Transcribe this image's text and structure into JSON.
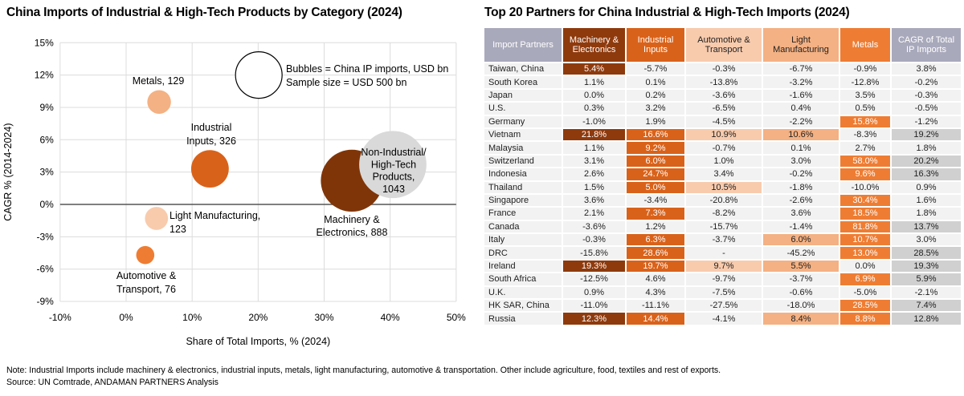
{
  "palette": {
    "dark": "#8E3A0D",
    "orange": "#D9621A",
    "metals": "#EE7D33",
    "peach_light": "#F8CBAD",
    "peach_med": "#F4B183",
    "gray": "#D0D0D0",
    "header_gray": "#A9A9BC",
    "row_bg": "#F2F2F2",
    "gridline": "#DCDCDC",
    "zero_line": "#555555"
  },
  "chart_data": [
    {
      "type": "scatter",
      "title": "China Imports of Industrial & High-Tech Products by Category (2024)",
      "xlabel": "Share of Total Imports, % (2024)",
      "ylabel": "CAGR % (2014-2024)",
      "xlim": [
        -10,
        50
      ],
      "ylim": [
        -9,
        15
      ],
      "x_tick_step": 10,
      "y_tick_step": 3,
      "x_ticks": [
        "-10%",
        "0%",
        "10%",
        "20%",
        "30%",
        "40%",
        "50%"
      ],
      "y_ticks": [
        "15%",
        "12%",
        "9%",
        "6%",
        "3%",
        "0%",
        "-3%",
        "-6%",
        "-9%"
      ],
      "grid": true,
      "bubble_legend": {
        "lines": [
          "Bubbles = China IP imports, USD bn",
          "Sample size = USD 500 bn"
        ],
        "sample_bn": 500,
        "x": 20.1,
        "y": 12.0
      },
      "points": [
        {
          "name": "Metals",
          "label_lines": [
            "Metals, 129"
          ],
          "x": 5.0,
          "y": 9.5,
          "value_bn": 129,
          "color": "#F4B183"
        },
        {
          "name": "Industrial Inputs",
          "label_lines": [
            "Industrial",
            "Inputs, 326"
          ],
          "x": 12.7,
          "y": 3.3,
          "value_bn": 326,
          "color": "#D9621A"
        },
        {
          "name": "Light Manufacturing",
          "label_lines": [
            "Light Manufacturing,",
            "123"
          ],
          "x": 4.6,
          "y": -1.3,
          "value_bn": 123,
          "color": "#F8CBAD"
        },
        {
          "name": "Automotive & Transport",
          "label_lines": [
            "Automotive &",
            "Transport, 76"
          ],
          "x": 2.9,
          "y": -4.7,
          "value_bn": 76,
          "color": "#EE7D33"
        },
        {
          "name": "Machinery & Electronics",
          "label_lines": [
            "Machinery &",
            "Electronics, 888"
          ],
          "x": 34.2,
          "y": 2.2,
          "value_bn": 888,
          "color": "#803508"
        },
        {
          "name": "Non-Industrial/High-Tech Products",
          "label_lines": [
            "Non-Industrial/",
            "High-Tech",
            "Products,",
            "1043"
          ],
          "x": 40.4,
          "y": 3.7,
          "value_bn": 1043,
          "color": "#D9D9D9"
        }
      ]
    },
    {
      "type": "table",
      "title": "Top 20 Partners for China Industrial & High-Tech Imports (2024)",
      "columns": [
        {
          "label": "Import Partners",
          "style": "header_gray"
        },
        {
          "label": "Machinery & Electronics",
          "style": "dark"
        },
        {
          "label": "Industrial Inputs",
          "style": "orange"
        },
        {
          "label": "Automotive & Transport",
          "style": "peach_light"
        },
        {
          "label": "Light Manufacturing",
          "style": "peach_med"
        },
        {
          "label": "Metals",
          "style": "metals"
        },
        {
          "label": "CAGR of Total IP Imports",
          "style": "header_gray"
        }
      ],
      "rows": [
        {
          "partner": "Taiwan, China",
          "cells": [
            [
              "5.4%",
              "dark"
            ],
            [
              "-5.7%",
              ""
            ],
            [
              "-0.3%",
              ""
            ],
            [
              "-6.7%",
              ""
            ],
            [
              "-0.9%",
              ""
            ],
            [
              "3.8%",
              ""
            ]
          ]
        },
        {
          "partner": "South Korea",
          "cells": [
            [
              "1.1%",
              ""
            ],
            [
              "0.1%",
              ""
            ],
            [
              "-13.8%",
              ""
            ],
            [
              "-3.2%",
              ""
            ],
            [
              "-12.8%",
              ""
            ],
            [
              "-0.2%",
              ""
            ]
          ]
        },
        {
          "partner": "Japan",
          "cells": [
            [
              "0.0%",
              ""
            ],
            [
              "0.2%",
              ""
            ],
            [
              "-3.6%",
              ""
            ],
            [
              "-1.6%",
              ""
            ],
            [
              "3.5%",
              ""
            ],
            [
              "-0.3%",
              ""
            ]
          ]
        },
        {
          "partner": "U.S.",
          "cells": [
            [
              "0.3%",
              ""
            ],
            [
              "3.2%",
              ""
            ],
            [
              "-6.5%",
              ""
            ],
            [
              "0.4%",
              ""
            ],
            [
              "0.5%",
              ""
            ],
            [
              "-0.5%",
              ""
            ]
          ]
        },
        {
          "partner": "Germany",
          "cells": [
            [
              "-1.0%",
              ""
            ],
            [
              "1.9%",
              ""
            ],
            [
              "-4.5%",
              ""
            ],
            [
              "-2.2%",
              ""
            ],
            [
              "15.8%",
              "metals"
            ],
            [
              "-1.2%",
              ""
            ]
          ]
        },
        {
          "partner": "Vietnam",
          "cells": [
            [
              "21.8%",
              "dark"
            ],
            [
              "16.6%",
              "orange"
            ],
            [
              "10.9%",
              "peach_light"
            ],
            [
              "10.6%",
              "peach_med"
            ],
            [
              "-8.3%",
              ""
            ],
            [
              "19.2%",
              "gray"
            ]
          ]
        },
        {
          "partner": "Malaysia",
          "cells": [
            [
              "1.1%",
              ""
            ],
            [
              "9.2%",
              "orange"
            ],
            [
              "-0.7%",
              ""
            ],
            [
              "0.1%",
              ""
            ],
            [
              "2.7%",
              ""
            ],
            [
              "1.8%",
              ""
            ]
          ]
        },
        {
          "partner": "Switzerland",
          "cells": [
            [
              "3.1%",
              ""
            ],
            [
              "6.0%",
              "orange"
            ],
            [
              "1.0%",
              ""
            ],
            [
              "3.0%",
              ""
            ],
            [
              "58.0%",
              "metals"
            ],
            [
              "20.2%",
              "gray"
            ]
          ]
        },
        {
          "partner": "Indonesia",
          "cells": [
            [
              "2.6%",
              ""
            ],
            [
              "24.7%",
              "orange"
            ],
            [
              "3.4%",
              ""
            ],
            [
              "-0.2%",
              ""
            ],
            [
              "9.6%",
              "metals"
            ],
            [
              "16.3%",
              "gray"
            ]
          ]
        },
        {
          "partner": "Thailand",
          "cells": [
            [
              "1.5%",
              ""
            ],
            [
              "5.0%",
              "orange"
            ],
            [
              "10.5%",
              "peach_light"
            ],
            [
              "-1.8%",
              ""
            ],
            [
              "-10.0%",
              ""
            ],
            [
              "0.9%",
              ""
            ]
          ]
        },
        {
          "partner": "Singapore",
          "cells": [
            [
              "3.6%",
              ""
            ],
            [
              "-3.4%",
              ""
            ],
            [
              "-20.8%",
              ""
            ],
            [
              "-2.6%",
              ""
            ],
            [
              "30.4%",
              "metals"
            ],
            [
              "1.6%",
              ""
            ]
          ]
        },
        {
          "partner": "France",
          "cells": [
            [
              "2.1%",
              ""
            ],
            [
              "7.3%",
              "orange"
            ],
            [
              "-8.2%",
              ""
            ],
            [
              "3.6%",
              ""
            ],
            [
              "18.5%",
              "metals"
            ],
            [
              "1.8%",
              ""
            ]
          ]
        },
        {
          "partner": "Canada",
          "cells": [
            [
              "-3.6%",
              ""
            ],
            [
              "1.2%",
              ""
            ],
            [
              "-15.7%",
              ""
            ],
            [
              "-1.4%",
              ""
            ],
            [
              "81.8%",
              "metals"
            ],
            [
              "13.7%",
              "gray"
            ]
          ]
        },
        {
          "partner": "Italy",
          "cells": [
            [
              "-0.3%",
              ""
            ],
            [
              "6.3%",
              "orange"
            ],
            [
              "-3.7%",
              ""
            ],
            [
              "6.0%",
              "peach_med"
            ],
            [
              "10.7%",
              "metals"
            ],
            [
              "3.0%",
              ""
            ]
          ]
        },
        {
          "partner": "DRC",
          "cells": [
            [
              "-15.8%",
              ""
            ],
            [
              "28.6%",
              "orange"
            ],
            [
              "-",
              ""
            ],
            [
              "-45.2%",
              ""
            ],
            [
              "13.0%",
              "metals"
            ],
            [
              "28.5%",
              "gray"
            ]
          ]
        },
        {
          "partner": "Ireland",
          "cells": [
            [
              "19.3%",
              "dark"
            ],
            [
              "19.7%",
              "orange"
            ],
            [
              "9.7%",
              "peach_light"
            ],
            [
              "5.5%",
              "peach_med"
            ],
            [
              "0.0%",
              ""
            ],
            [
              "19.3%",
              "gray"
            ]
          ]
        },
        {
          "partner": "South Africa",
          "cells": [
            [
              "-12.5%",
              ""
            ],
            [
              "4.6%",
              ""
            ],
            [
              "-9.7%",
              ""
            ],
            [
              "-3.7%",
              ""
            ],
            [
              "6.9%",
              "metals"
            ],
            [
              "5.9%",
              "gray"
            ]
          ]
        },
        {
          "partner": "U.K.",
          "cells": [
            [
              "0.9%",
              ""
            ],
            [
              "4.3%",
              ""
            ],
            [
              "-7.5%",
              ""
            ],
            [
              "-0.6%",
              ""
            ],
            [
              "-5.0%",
              ""
            ],
            [
              "-2.1%",
              ""
            ]
          ]
        },
        {
          "partner": "HK SAR, China",
          "cells": [
            [
              "-11.0%",
              ""
            ],
            [
              "-11.1%",
              ""
            ],
            [
              "-27.5%",
              ""
            ],
            [
              "-18.0%",
              ""
            ],
            [
              "28.5%",
              "metals"
            ],
            [
              "7.4%",
              "gray"
            ]
          ]
        },
        {
          "partner": "Russia",
          "cells": [
            [
              "12.3%",
              "dark"
            ],
            [
              "14.4%",
              "orange"
            ],
            [
              "-4.1%",
              ""
            ],
            [
              "8.4%",
              "peach_med"
            ],
            [
              "8.8%",
              "metals"
            ],
            [
              "12.8%",
              "gray"
            ]
          ]
        }
      ]
    }
  ],
  "footnotes": {
    "note": "Note: Industrial Imports include machinery & electronics, industrial inputs, metals, light manufacturing, automotive & transportation. Other include agriculture, food, textiles and rest of exports.",
    "source": "Source: UN Comtrade, ANDAMAN PARTNERS Analysis"
  }
}
